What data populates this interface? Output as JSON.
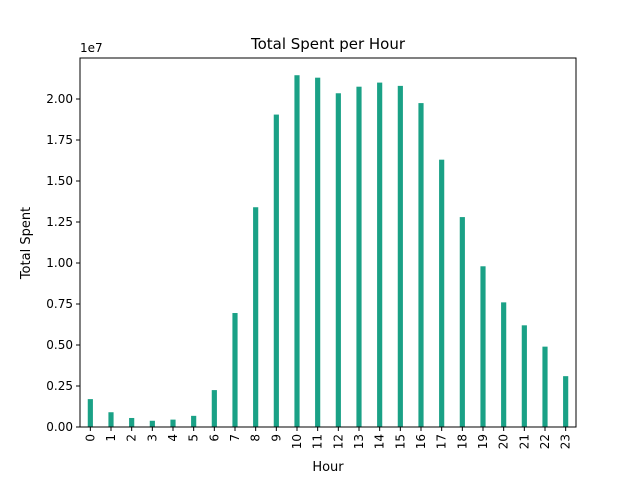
{
  "chart_data": {
    "type": "bar",
    "title": "Total Spent per Hour",
    "xlabel": "Hour",
    "ylabel": "Total Spent",
    "y_offset_label": "1e7",
    "categories": [
      "0",
      "1",
      "2",
      "3",
      "4",
      "5",
      "6",
      "7",
      "8",
      "9",
      "10",
      "11",
      "12",
      "13",
      "14",
      "15",
      "16",
      "17",
      "18",
      "19",
      "20",
      "21",
      "22",
      "23"
    ],
    "values": [
      1700000,
      900000,
      550000,
      380000,
      450000,
      680000,
      2250000,
      6950000,
      13400000,
      19050000,
      21450000,
      21300000,
      20350000,
      20750000,
      21000000,
      20800000,
      19750000,
      16300000,
      12800000,
      9800000,
      7600000,
      6200000,
      4900000,
      3100000
    ],
    "ylim": [
      0,
      22500000
    ],
    "yticks": [
      0,
      2500000,
      5000000,
      7500000,
      10000000,
      12500000,
      15000000,
      17500000,
      20000000
    ],
    "ytick_labels": [
      "0.00",
      "0.25",
      "0.50",
      "0.75",
      "1.00",
      "1.25",
      "1.50",
      "1.75",
      "2.00"
    ],
    "bar_color": "#1aa186",
    "grid": false,
    "legend": "none"
  }
}
